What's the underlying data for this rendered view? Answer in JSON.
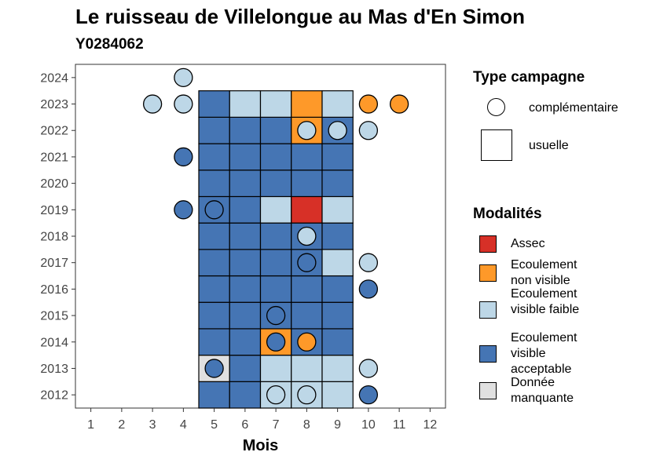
{
  "title": "Le ruisseau de Villelongue au Mas d'En Simon",
  "subtitle": "Y0284062",
  "legend": {
    "type_title": "Type campagne",
    "type_items": [
      {
        "label": "complémentaire",
        "shape": "circle"
      },
      {
        "label": "usuelle",
        "shape": "square"
      }
    ],
    "mod_title": "Modalités",
    "mod_items": [
      {
        "label": "Assec",
        "color": "#d73027"
      },
      {
        "label": "Ecoulement non visible",
        "color": "#fe9929"
      },
      {
        "label": "Ecoulement visible faible",
        "color": "#bdd7e7"
      },
      {
        "label": "Ecoulement visible acceptable",
        "color": "#4575b4"
      },
      {
        "label": "Donnée manquante",
        "color": "#e0e0e0"
      }
    ]
  },
  "chart_data": {
    "type": "heatmap",
    "xlabel": "Mois",
    "ylabel": "",
    "x_ticks": [
      "1",
      "2",
      "3",
      "4",
      "5",
      "6",
      "7",
      "8",
      "9",
      "10",
      "11",
      "12"
    ],
    "y_ticks": [
      "2012",
      "2013",
      "2014",
      "2015",
      "2016",
      "2017",
      "2018",
      "2019",
      "2020",
      "2021",
      "2022",
      "2023",
      "2024"
    ],
    "xlim": [
      0.5,
      12.5
    ],
    "ylim": [
      2011.5,
      2024.5
    ],
    "colors": {
      "Assec": "#d73027",
      "Ecoulement non visible": "#fe9929",
      "Ecoulement visible faible": "#bdd7e7",
      "Ecoulement visible acceptable": "#4575b4",
      "Donnée manquante": "#e0e0e0"
    },
    "usuelle": [
      {
        "year": 2012,
        "months": [
          "Ecoulement visible acceptable",
          "Ecoulement visible acceptable",
          "Ecoulement visible faible",
          "Ecoulement visible faible",
          "Ecoulement visible faible"
        ]
      },
      {
        "year": 2013,
        "months": [
          "Donnée manquante",
          "Ecoulement visible acceptable",
          "Ecoulement visible faible",
          "Ecoulement visible faible",
          "Ecoulement visible faible"
        ]
      },
      {
        "year": 2014,
        "months": [
          "Ecoulement visible acceptable",
          "Ecoulement visible acceptable",
          "Ecoulement non visible",
          "Ecoulement visible acceptable",
          "Ecoulement visible acceptable"
        ]
      },
      {
        "year": 2015,
        "months": [
          "Ecoulement visible acceptable",
          "Ecoulement visible acceptable",
          "Ecoulement visible acceptable",
          "Ecoulement visible acceptable",
          "Ecoulement visible acceptable"
        ]
      },
      {
        "year": 2016,
        "months": [
          "Ecoulement visible acceptable",
          "Ecoulement visible acceptable",
          "Ecoulement visible acceptable",
          "Ecoulement visible acceptable",
          "Ecoulement visible acceptable"
        ]
      },
      {
        "year": 2017,
        "months": [
          "Ecoulement visible acceptable",
          "Ecoulement visible acceptable",
          "Ecoulement visible acceptable",
          "Ecoulement visible acceptable",
          "Ecoulement visible faible"
        ]
      },
      {
        "year": 2018,
        "months": [
          "Ecoulement visible acceptable",
          "Ecoulement visible acceptable",
          "Ecoulement visible acceptable",
          "Ecoulement visible acceptable",
          "Ecoulement visible acceptable"
        ]
      },
      {
        "year": 2019,
        "months": [
          "Ecoulement visible acceptable",
          "Ecoulement visible acceptable",
          "Ecoulement visible faible",
          "Assec",
          "Ecoulement visible faible"
        ]
      },
      {
        "year": 2020,
        "months": [
          "Ecoulement visible acceptable",
          "Ecoulement visible acceptable",
          "Ecoulement visible acceptable",
          "Ecoulement visible acceptable",
          "Ecoulement visible acceptable"
        ]
      },
      {
        "year": 2021,
        "months": [
          "Ecoulement visible acceptable",
          "Ecoulement visible acceptable",
          "Ecoulement visible acceptable",
          "Ecoulement visible acceptable",
          "Ecoulement visible acceptable"
        ]
      },
      {
        "year": 2022,
        "months": [
          "Ecoulement visible acceptable",
          "Ecoulement visible acceptable",
          "Ecoulement visible acceptable",
          "Ecoulement non visible",
          "Ecoulement visible acceptable"
        ]
      },
      {
        "year": 2023,
        "months": [
          "Ecoulement visible acceptable",
          "Ecoulement visible faible",
          "Ecoulement visible faible",
          "Ecoulement non visible",
          "Ecoulement visible faible"
        ]
      }
    ],
    "usuelle_first_month": 5,
    "complementaire": [
      {
        "year": 2024,
        "month": 4,
        "value": "Ecoulement visible faible"
      },
      {
        "year": 2023,
        "month": 3,
        "value": "Ecoulement visible faible"
      },
      {
        "year": 2023,
        "month": 4,
        "value": "Ecoulement visible faible"
      },
      {
        "year": 2023,
        "month": 10,
        "value": "Ecoulement non visible"
      },
      {
        "year": 2023,
        "month": 11,
        "value": "Ecoulement non visible"
      },
      {
        "year": 2022,
        "month": 8,
        "value": "Ecoulement visible faible"
      },
      {
        "year": 2022,
        "month": 9,
        "value": "Ecoulement visible faible"
      },
      {
        "year": 2022,
        "month": 10,
        "value": "Ecoulement visible faible"
      },
      {
        "year": 2021,
        "month": 4,
        "value": "Ecoulement visible acceptable"
      },
      {
        "year": 2019,
        "month": 4,
        "value": "Ecoulement visible acceptable"
      },
      {
        "year": 2019,
        "month": 5,
        "value": "Ecoulement visible acceptable"
      },
      {
        "year": 2018,
        "month": 8,
        "value": "Ecoulement visible faible"
      },
      {
        "year": 2017,
        "month": 8,
        "value": "Ecoulement visible acceptable"
      },
      {
        "year": 2017,
        "month": 10,
        "value": "Ecoulement visible faible"
      },
      {
        "year": 2016,
        "month": 10,
        "value": "Ecoulement visible acceptable"
      },
      {
        "year": 2015,
        "month": 7,
        "value": "Ecoulement visible acceptable"
      },
      {
        "year": 2014,
        "month": 7,
        "value": "Ecoulement visible acceptable"
      },
      {
        "year": 2014,
        "month": 8,
        "value": "Ecoulement non visible"
      },
      {
        "year": 2013,
        "month": 5,
        "value": "Ecoulement visible acceptable"
      },
      {
        "year": 2013,
        "month": 10,
        "value": "Ecoulement visible faible"
      },
      {
        "year": 2012,
        "month": 7,
        "value": "Ecoulement visible faible"
      },
      {
        "year": 2012,
        "month": 8,
        "value": "Ecoulement visible faible"
      },
      {
        "year": 2012,
        "month": 10,
        "value": "Ecoulement visible acceptable"
      }
    ]
  }
}
